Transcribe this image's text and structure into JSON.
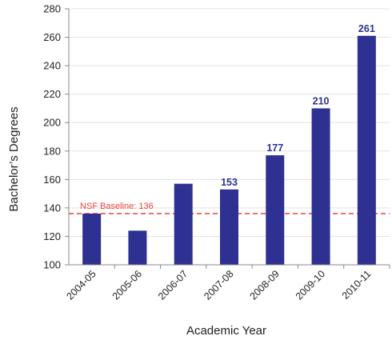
{
  "chart_data": {
    "type": "bar",
    "categories": [
      "2004-05",
      "2005-06",
      "2006-07",
      "2007-08",
      "2008-09",
      "2009-10",
      "2010-11"
    ],
    "values": [
      136,
      124,
      157,
      153,
      177,
      210,
      261
    ],
    "data_labels": [
      "",
      "",
      "",
      "153",
      "177",
      "210",
      "261"
    ],
    "xlabel": "Academic Year",
    "ylabel": "Bachelor’s Degrees",
    "ylim": [
      100,
      280
    ],
    "yticks": [
      100,
      120,
      140,
      160,
      180,
      200,
      220,
      240,
      260,
      280
    ],
    "grid": true,
    "reference_line": {
      "value": 136,
      "label": "NSF Baseline: 136"
    },
    "colors": {
      "bar": "#2e3192",
      "label": "#2e3192",
      "reference": "#e8413c",
      "grid": "#c8c8c8"
    }
  }
}
